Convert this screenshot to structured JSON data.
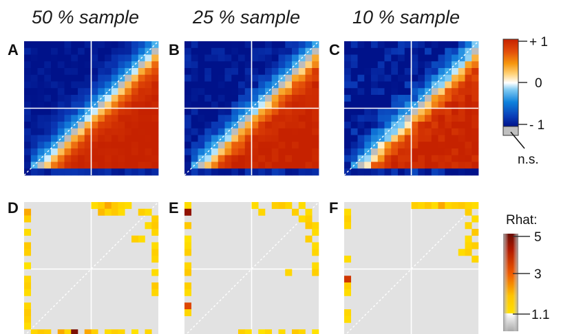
{
  "chart_data": {
    "type": "heatmap",
    "columns": [
      "50 % sample",
      "25 % sample",
      "10 % sample"
    ],
    "grid_size": 20,
    "correlation_panels": [
      {
        "label": "A",
        "column": "50 % sample"
      },
      {
        "label": "B",
        "column": "25 % sample"
      },
      {
        "label": "C",
        "column": "10 % sample"
      }
    ],
    "rhat_panels": [
      {
        "label": "D",
        "column": "50 % sample",
        "cells": [
          [
            0,
            1,
            2.0
          ],
          [
            0,
            2,
            1.5
          ],
          [
            0,
            4,
            1.3
          ],
          [
            0,
            6,
            1.6
          ],
          [
            0,
            7,
            1.5
          ],
          [
            0,
            9,
            1.2
          ],
          [
            0,
            11,
            1.4
          ],
          [
            0,
            12,
            1.5
          ],
          [
            0,
            13,
            1.3
          ],
          [
            0,
            15,
            1.4
          ],
          [
            0,
            16,
            1.6
          ],
          [
            0,
            17,
            1.5
          ],
          [
            0,
            18,
            1.3
          ],
          [
            1,
            19,
            1.4
          ],
          [
            2,
            19,
            1.6
          ],
          [
            3,
            19,
            1.5
          ],
          [
            5,
            19,
            2.0
          ],
          [
            6,
            19,
            1.4
          ],
          [
            7,
            19,
            4.8
          ],
          [
            9,
            19,
            2.0
          ],
          [
            10,
            19,
            1.5
          ],
          [
            12,
            19,
            1.3
          ],
          [
            13,
            19,
            1.5
          ],
          [
            14,
            19,
            1.4
          ],
          [
            16,
            19,
            1.2
          ],
          [
            18,
            19,
            1.4
          ],
          [
            10,
            0,
            1.3
          ],
          [
            11,
            0,
            1.5
          ],
          [
            12,
            0,
            2.0
          ],
          [
            13,
            0,
            1.6
          ],
          [
            14,
            0,
            1.4
          ],
          [
            15,
            0,
            1.3
          ],
          [
            11,
            1,
            1.8
          ],
          [
            12,
            1,
            1.4
          ],
          [
            13,
            1,
            1.6
          ],
          [
            14,
            1,
            1.3
          ],
          [
            17,
            1,
            1.5
          ],
          [
            18,
            1,
            1.3
          ],
          [
            19,
            2,
            1.5
          ],
          [
            18,
            3,
            1.3
          ],
          [
            19,
            3,
            1.6
          ],
          [
            19,
            4,
            1.4
          ],
          [
            17,
            5,
            1.3
          ],
          [
            16,
            5,
            1.5
          ],
          [
            19,
            6,
            1.3
          ],
          [
            19,
            7,
            1.5
          ],
          [
            19,
            8,
            1.4
          ],
          [
            19,
            10,
            1.3
          ],
          [
            19,
            12,
            1.6
          ],
          [
            19,
            13,
            1.4
          ]
        ]
      },
      {
        "label": "E",
        "column": "25 % sample",
        "cells": [
          [
            0,
            0,
            1.3
          ],
          [
            0,
            1,
            4.5
          ],
          [
            0,
            3,
            1.6
          ],
          [
            0,
            5,
            1.2
          ],
          [
            0,
            6,
            1.3
          ],
          [
            0,
            7,
            1.5
          ],
          [
            0,
            9,
            1.4
          ],
          [
            0,
            10,
            1.6
          ],
          [
            0,
            12,
            1.5
          ],
          [
            0,
            13,
            1.3
          ],
          [
            0,
            15,
            3.2
          ],
          [
            0,
            16,
            1.4
          ],
          [
            8,
            19,
            1.5
          ],
          [
            9,
            19,
            1.3
          ],
          [
            11,
            19,
            1.2
          ],
          [
            12,
            19,
            1.4
          ],
          [
            14,
            19,
            1.3
          ],
          [
            16,
            19,
            1.6
          ],
          [
            17,
            19,
            1.4
          ],
          [
            19,
            19,
            1.2
          ],
          [
            10,
            0,
            1.3
          ],
          [
            13,
            0,
            1.5
          ],
          [
            14,
            0,
            1.6
          ],
          [
            15,
            0,
            1.4
          ],
          [
            17,
            0,
            1.3
          ],
          [
            11,
            1,
            1.4
          ],
          [
            16,
            1,
            1.5
          ],
          [
            18,
            1,
            1.3
          ],
          [
            17,
            2,
            1.3
          ],
          [
            18,
            2,
            1.5
          ],
          [
            18,
            3,
            1.6
          ],
          [
            19,
            3,
            1.4
          ],
          [
            19,
            4,
            1.3
          ],
          [
            18,
            5,
            1.5
          ],
          [
            19,
            6,
            1.3
          ],
          [
            19,
            7,
            1.4
          ],
          [
            19,
            9,
            1.3
          ],
          [
            19,
            10,
            1.5
          ],
          [
            15,
            10,
            1.4
          ]
        ]
      },
      {
        "label": "F",
        "column": "10 % sample",
        "cells": [
          [
            0,
            1,
            1.3
          ],
          [
            0,
            2,
            1.5
          ],
          [
            0,
            3,
            1.4
          ],
          [
            0,
            8,
            1.3
          ],
          [
            0,
            11,
            3.5
          ],
          [
            0,
            12,
            1.5
          ],
          [
            0,
            13,
            1.3
          ],
          [
            0,
            16,
            1.4
          ],
          [
            0,
            17,
            1.3
          ],
          [
            10,
            0,
            1.5
          ],
          [
            11,
            0,
            1.4
          ],
          [
            12,
            0,
            1.6
          ],
          [
            13,
            0,
            1.3
          ],
          [
            14,
            0,
            2.0
          ],
          [
            15,
            0,
            1.4
          ],
          [
            16,
            0,
            1.5
          ],
          [
            17,
            0,
            1.6
          ],
          [
            18,
            0,
            1.4
          ],
          [
            19,
            0,
            1.3
          ],
          [
            18,
            1,
            1.5
          ],
          [
            19,
            2,
            1.3
          ],
          [
            18,
            3,
            1.4
          ],
          [
            19,
            4,
            1.6
          ],
          [
            18,
            5,
            1.3
          ],
          [
            19,
            6,
            1.5
          ],
          [
            18,
            6,
            1.4
          ],
          [
            17,
            7,
            1.3
          ],
          [
            18,
            7,
            1.5
          ],
          [
            19,
            8,
            1.4
          ]
        ]
      }
    ],
    "corr_colorbar": {
      "ticks": [
        "+ 1",
        "0",
        "- 1"
      ],
      "ns_label": "n.s."
    },
    "rhat_colorbar": {
      "title": "Rhat:",
      "ticks": [
        "5",
        "3",
        "1.1"
      ]
    }
  }
}
